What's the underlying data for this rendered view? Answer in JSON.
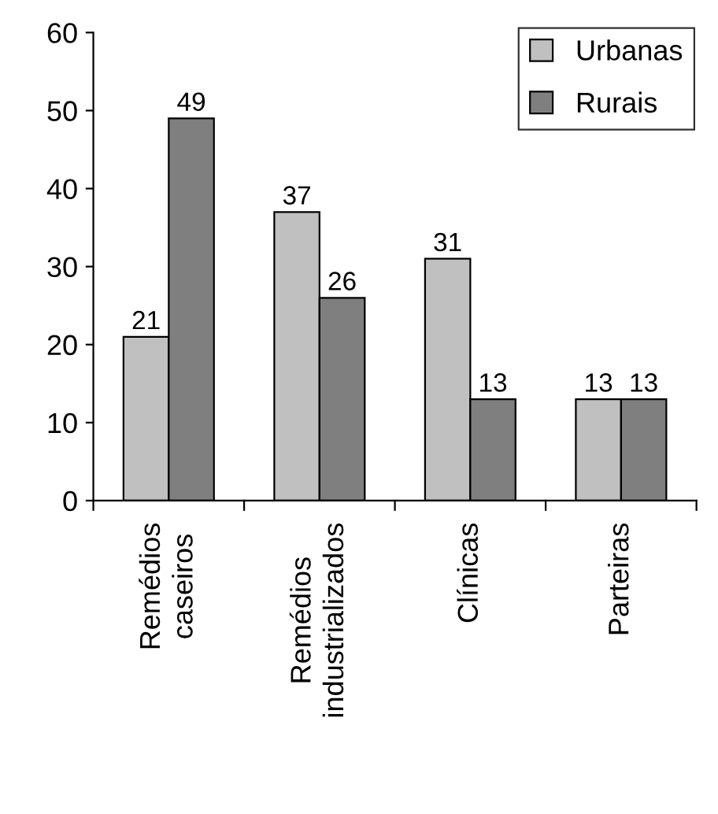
{
  "chart_data": {
    "type": "bar",
    "categories": [
      "Remédios caseiros",
      "Remédios industrializados",
      "Clínicas",
      "Parteiras"
    ],
    "series": [
      {
        "name": "Urbanas",
        "color": "#c0c0c0",
        "values": [
          21,
          37,
          31,
          13
        ]
      },
      {
        "name": "Rurais",
        "color": "#7f7f7f",
        "values": [
          49,
          26,
          13,
          13
        ]
      }
    ],
    "ylim": [
      0,
      60
    ],
    "yticks": [
      0,
      10,
      20,
      30,
      40,
      50,
      60
    ],
    "data_labels": true,
    "grid": false,
    "legend": "top right"
  }
}
